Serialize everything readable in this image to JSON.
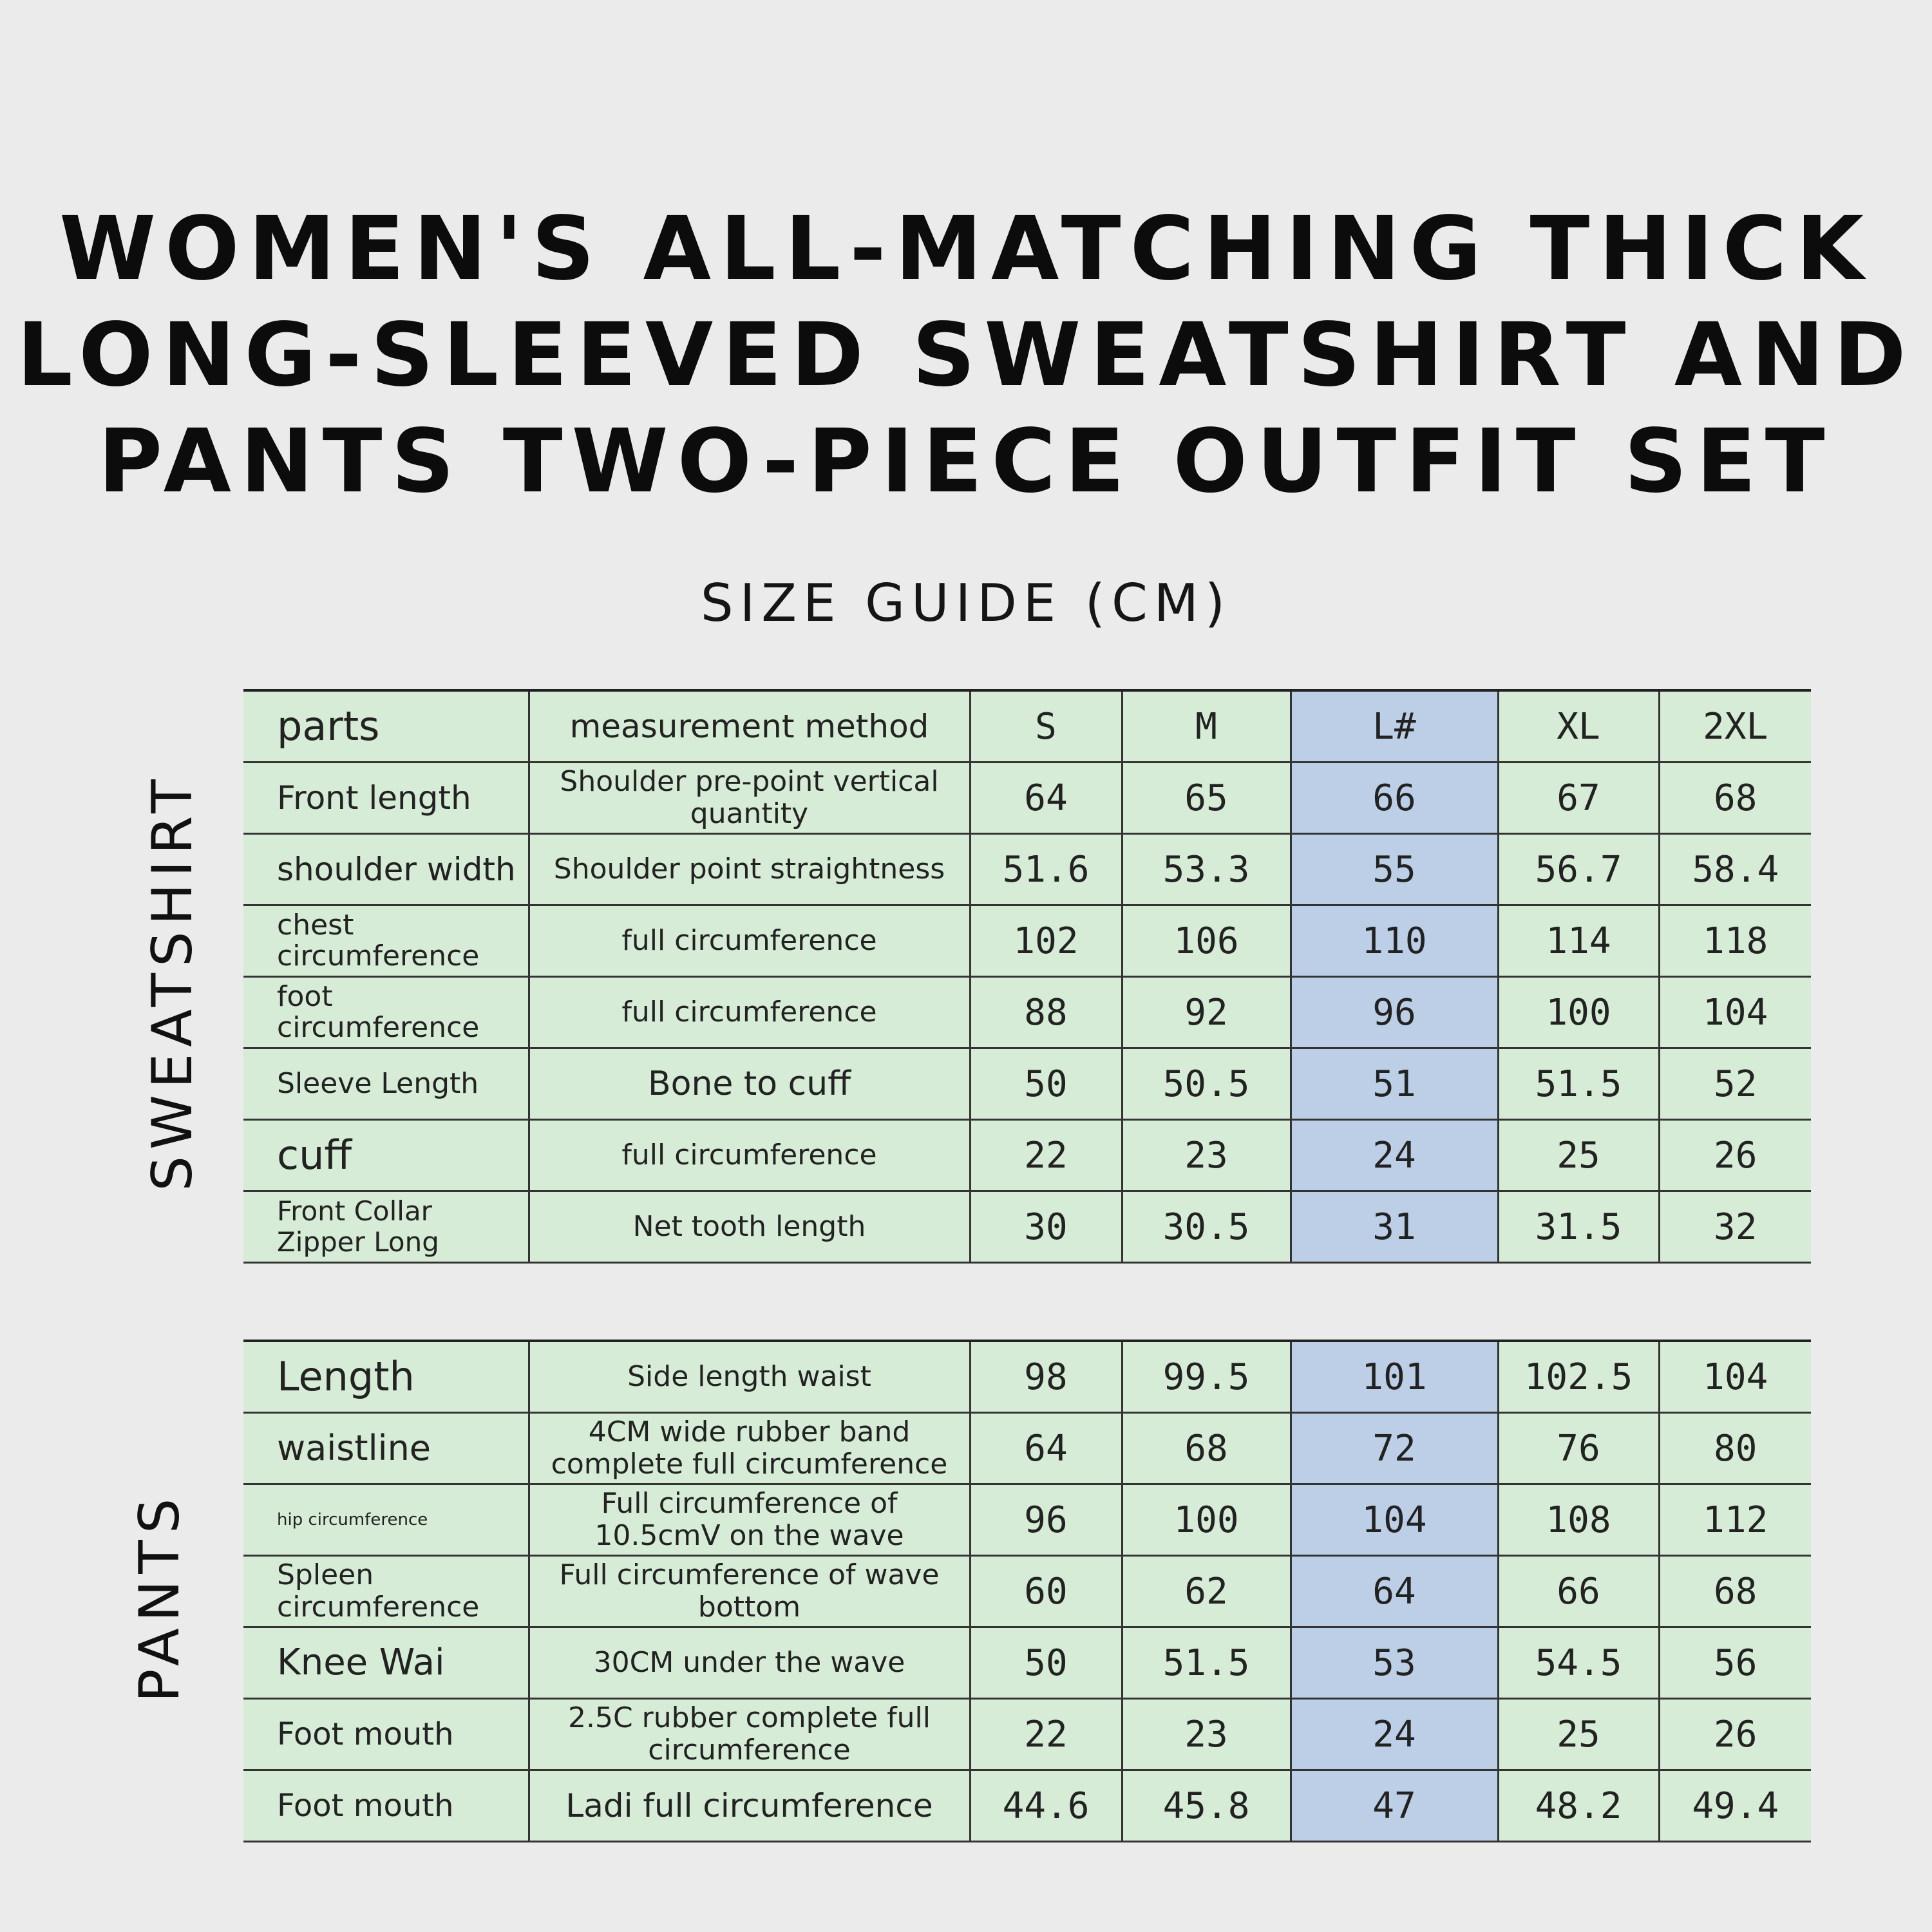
{
  "title_lines": [
    "WOMEN'S ALL-MATCHING THICK",
    "LONG-SLEEVED SWEATSHIRT AND",
    "PANTS TWO-PIECE OUTFIT SET"
  ],
  "subtitle": "SIZE GUIDE (CM)",
  "highlight_color": "#bccfe6",
  "table_color": "#d6ecd6",
  "sweatshirt": {
    "label": "SWEATSHIRT",
    "header": {
      "part": "parts",
      "method": "measurement method",
      "sizes": [
        "S",
        "M",
        "L#",
        "XL",
        "2XL"
      ]
    },
    "rows": [
      {
        "part": "Front length",
        "method": "Shoulder pre-point vertical quantity",
        "values": [
          "64",
          "65",
          "66",
          "67",
          "68"
        ]
      },
      {
        "part": "shoulder width",
        "method": "Shoulder point straightness",
        "values": [
          "51.6",
          "53.3",
          "55",
          "56.7",
          "58.4"
        ]
      },
      {
        "part": "chest circumference",
        "method": "full circumference",
        "values": [
          "102",
          "106",
          "110",
          "114",
          "118"
        ]
      },
      {
        "part": "foot circumference",
        "method": "full circumference",
        "values": [
          "88",
          "92",
          "96",
          "100",
          "104"
        ]
      },
      {
        "part": "Sleeve Length",
        "method": "Bone to cuff",
        "values": [
          "50",
          "50.5",
          "51",
          "51.5",
          "52"
        ]
      },
      {
        "part": "cuff",
        "method": "full circumference",
        "values": [
          "22",
          "23",
          "24",
          "25",
          "26"
        ]
      },
      {
        "part": "Front Collar Zipper Long",
        "method": "Net tooth length",
        "values": [
          "30",
          "30.5",
          "31",
          "31.5",
          "32"
        ]
      }
    ]
  },
  "pants": {
    "label": "PANTS",
    "rows": [
      {
        "part": "Length",
        "method": "Side length waist",
        "values": [
          "98",
          "99.5",
          "101",
          "102.5",
          "104"
        ]
      },
      {
        "part": "waistline",
        "method": "4CM wide rubber band complete full circumference",
        "values": [
          "64",
          "68",
          "72",
          "76",
          "80"
        ]
      },
      {
        "part": "hip circumference",
        "method": "Full circumference of 10.5cmV on the wave",
        "values": [
          "96",
          "100",
          "104",
          "108",
          "112"
        ]
      },
      {
        "part": "Spleen circumference",
        "method": "Full circumference of wave bottom",
        "values": [
          "60",
          "62",
          "64",
          "66",
          "68"
        ]
      },
      {
        "part": "Knee Wai",
        "method": "30CM under the wave",
        "values": [
          "50",
          "51.5",
          "53",
          "54.5",
          "56"
        ]
      },
      {
        "part": "Foot mouth",
        "method": "2.5C rubber complete full circumference",
        "values": [
          "22",
          "23",
          "24",
          "25",
          "26"
        ]
      },
      {
        "part": "Foot mouth",
        "method": "Ladi full circumference",
        "values": [
          "44.6",
          "45.8",
          "47",
          "48.2",
          "49.4"
        ]
      }
    ]
  }
}
